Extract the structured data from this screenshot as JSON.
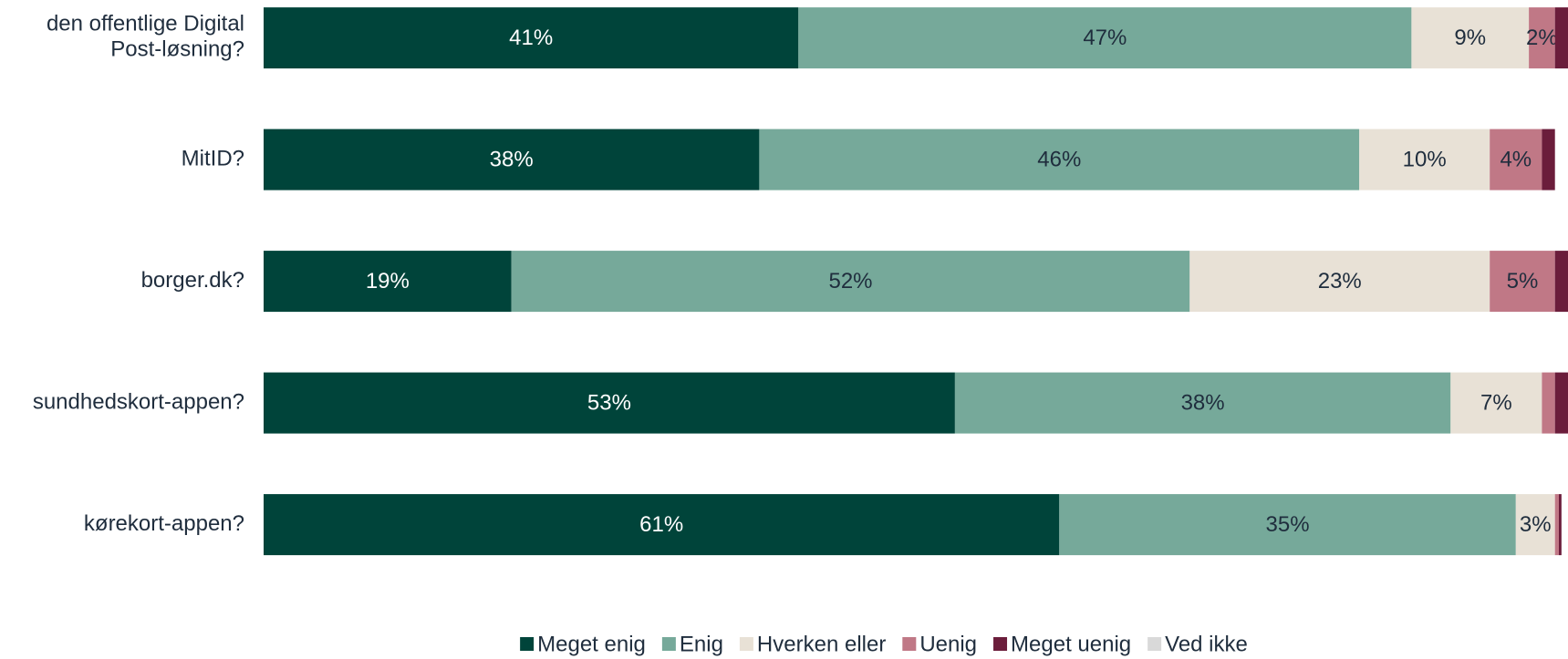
{
  "chart_data": {
    "type": "stacked-bar-horizontal",
    "categories": [
      "den offentlige Digital\nPost-løsning?",
      "MitID?",
      "borger.dk?",
      "sundhedskort-appen?",
      "kørekort-appen?"
    ],
    "xlim": [
      0,
      100
    ],
    "legend": "bottom",
    "series": [
      {
        "name": "Meget enig",
        "color": "#00443a",
        "values": [
          41,
          38,
          19,
          53,
          61
        ],
        "value_labels": [
          "41%",
          "38%",
          "19%",
          "53%",
          "61%"
        ]
      },
      {
        "name": "Enig",
        "color": "#76a99a",
        "values": [
          47,
          46,
          52,
          38,
          35
        ],
        "value_labels": [
          "47%",
          "46%",
          "52%",
          "38%",
          "35%"
        ]
      },
      {
        "name": "Hverken eller",
        "color": "#e8e1d6",
        "values": [
          9,
          10,
          23,
          7,
          3
        ],
        "value_labels": [
          "9%",
          "10%",
          "23%",
          "7%",
          "3%"
        ]
      },
      {
        "name": "Uenig",
        "color": "#c07886",
        "values": [
          2,
          4,
          5,
          1,
          0.3
        ],
        "value_labels": [
          "2%",
          "4%",
          "5%",
          null,
          null
        ]
      },
      {
        "name": "Meget uenig",
        "color": "#6b1d3b",
        "values": [
          1,
          1,
          1,
          1,
          0.2
        ],
        "value_labels": [
          null,
          null,
          null,
          null,
          null
        ]
      },
      {
        "name": "Ved ikke",
        "color": "#d9d9d9",
        "values": [
          0,
          0,
          0,
          0,
          0
        ],
        "value_labels": [
          null,
          null,
          null,
          null,
          null
        ]
      }
    ]
  }
}
